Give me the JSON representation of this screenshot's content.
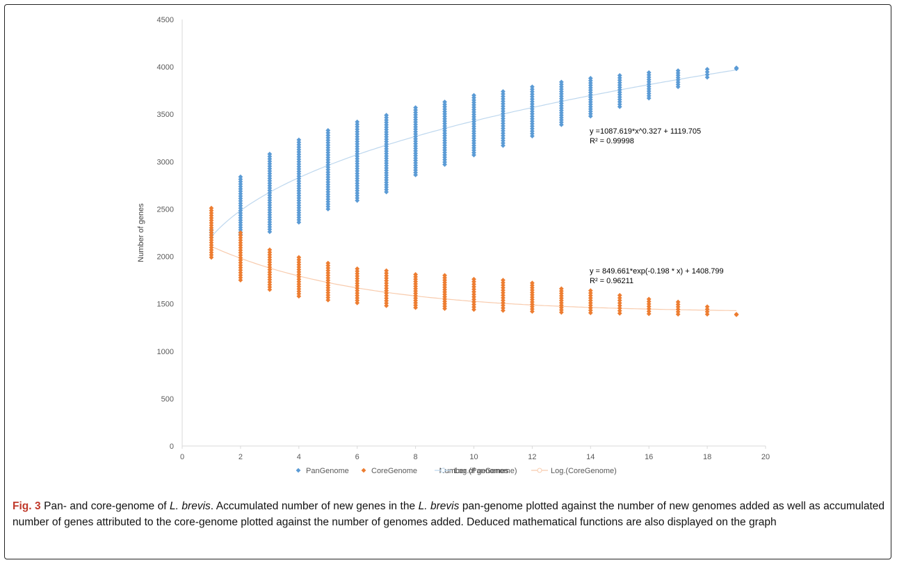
{
  "chart_data": {
    "type": "scatter",
    "x_label": "Number of genomes",
    "y_label": "Number of genes",
    "xlim": [
      0,
      20
    ],
    "ylim": [
      0,
      4500
    ],
    "x_ticks": [
      0,
      2,
      4,
      6,
      8,
      10,
      12,
      14,
      16,
      18,
      20
    ],
    "y_ticks": [
      0,
      500,
      1000,
      1500,
      2000,
      2500,
      3000,
      3500,
      4000,
      4500
    ],
    "grid": false,
    "legend_position": "bottom",
    "series": [
      {
        "name": "PanGenome",
        "marker": "diamond",
        "color": "#5B9BD5",
        "x": [
          1,
          2,
          3,
          4,
          5,
          6,
          7,
          8,
          9,
          10,
          11,
          12,
          13,
          14,
          15,
          16,
          17,
          18,
          19
        ],
        "y_min": [
          2200,
          2230,
          2260,
          2360,
          2500,
          2590,
          2680,
          2860,
          2970,
          3070,
          3170,
          3270,
          3390,
          3480,
          3580,
          3670,
          3790,
          3890,
          3980
        ],
        "y_max": [
          2280,
          2840,
          3080,
          3230,
          3330,
          3420,
          3490,
          3570,
          3630,
          3700,
          3740,
          3790,
          3840,
          3880,
          3910,
          3940,
          3960,
          3975,
          3990
        ]
      },
      {
        "name": "CoreGenome",
        "marker": "diamond",
        "color": "#ED7D31",
        "x": [
          1,
          2,
          3,
          4,
          5,
          6,
          7,
          8,
          9,
          10,
          11,
          12,
          13,
          14,
          15,
          16,
          17,
          18,
          19
        ],
        "y_min": [
          1990,
          1750,
          1650,
          1580,
          1540,
          1510,
          1480,
          1460,
          1450,
          1440,
          1430,
          1420,
          1410,
          1405,
          1400,
          1395,
          1390,
          1390,
          1385
        ],
        "y_max": [
          2510,
          2250,
          2070,
          1990,
          1930,
          1870,
          1850,
          1810,
          1800,
          1760,
          1750,
          1720,
          1660,
          1640,
          1590,
          1550,
          1520,
          1470,
          1390
        ]
      },
      {
        "name": "Log.(PanGenome)",
        "type": "line",
        "color": "#BDD7EE",
        "equation": "y =1087.619*x^0.327 + 1119.705",
        "r2": "R² = 0.99998"
      },
      {
        "name": "Log.(CoreGenome)",
        "type": "line",
        "color": "#F8CBAD",
        "equation": "y = 849.661*exp(-0.198 * x) + 1408.799",
        "r2": "R² = 0.96211"
      }
    ]
  },
  "caption": {
    "label": "Fig. 3",
    "segments": [
      {
        "text": " Pan- and core-genome of ",
        "italic": false
      },
      {
        "text": "L. brevis",
        "italic": true
      },
      {
        "text": ". Accumulated number of new genes in the ",
        "italic": false
      },
      {
        "text": "L. brevis",
        "italic": true
      },
      {
        "text": " pan-genome plotted against the number of new genomes added as well as accumulated number of genes attributed to the core-genome plotted against the number of genomes added. Deduced mathematical functions are also displayed on the graph",
        "italic": false
      }
    ]
  }
}
